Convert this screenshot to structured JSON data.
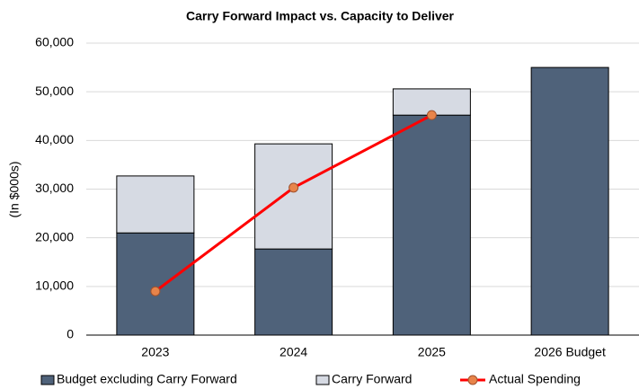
{
  "chart_data": {
    "type": "bar",
    "stacked": true,
    "title": "Carry Forward Impact vs. Capacity to Deliver",
    "y_label": "(In $000s)",
    "categories": [
      "2023",
      "2024",
      "2025",
      "2026 Budget"
    ],
    "series": [
      {
        "name": "Budget excluding Carry Forward",
        "type": "bar",
        "color": "#4f627a",
        "values": [
          21000,
          17700,
          45200,
          55000
        ]
      },
      {
        "name": "Carry Forward",
        "type": "bar",
        "color": "#d6dae3",
        "values": [
          11700,
          21600,
          5400,
          null
        ]
      },
      {
        "name": "Actual Spending",
        "type": "line",
        "color": "#ff0000",
        "marker_color": "#e8844a",
        "values": [
          9000,
          30300,
          45200,
          null
        ]
      }
    ],
    "ylim": [
      0,
      60000
    ],
    "yticks": [
      0,
      {
        "value": 10000,
        "label": "10,000"
      },
      {
        "value": 20000,
        "label": "20,000"
      },
      {
        "value": 30000,
        "label": "30,000"
      },
      {
        "value": 40000,
        "label": "40,000"
      },
      {
        "value": 50000,
        "label": "50,000"
      },
      {
        "value": 60000,
        "label": "60,000"
      }
    ],
    "grid": true,
    "legend": "bottom"
  }
}
